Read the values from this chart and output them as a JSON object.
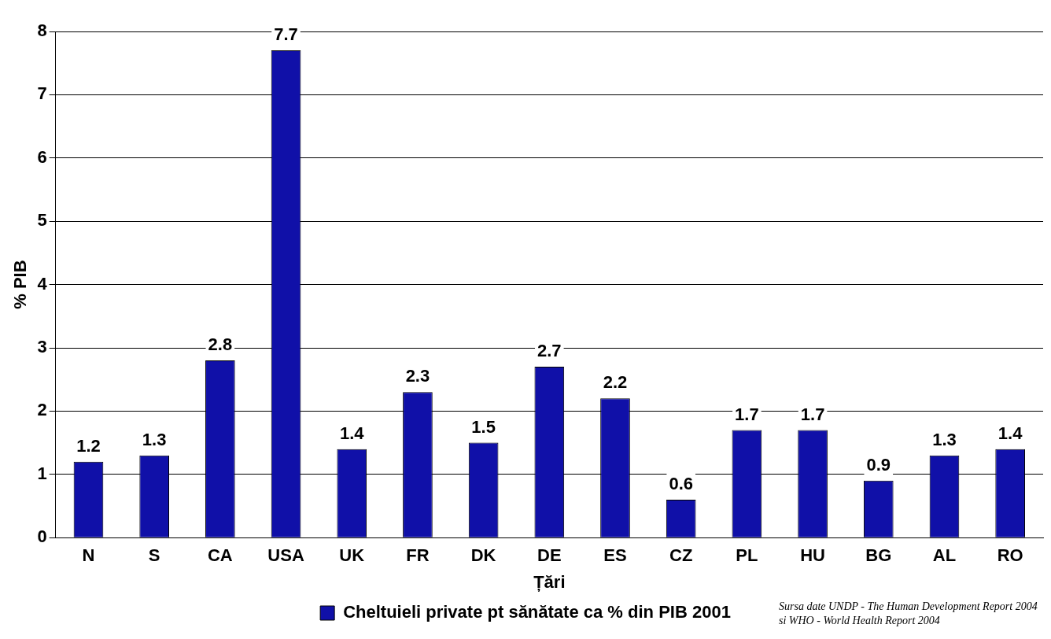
{
  "chart_data": {
    "type": "bar",
    "xlabel": "Țări",
    "ylabel": "% PIB",
    "categories": [
      "N",
      "S",
      "CA",
      "USA",
      "UK",
      "FR",
      "DK",
      "DE",
      "ES",
      "CZ",
      "PL",
      "HU",
      "BG",
      "AL",
      "RO"
    ],
    "series": [
      {
        "name": "Cheltuieli private pt sănătate ca % din PIB 2001",
        "color": "#1010a8",
        "values": [
          1.2,
          1.3,
          2.8,
          7.7,
          1.4,
          2.3,
          1.5,
          2.7,
          2.2,
          0.6,
          1.7,
          1.7,
          0.9,
          1.3,
          1.4
        ]
      }
    ],
    "ylim": [
      0,
      8
    ],
    "yticks": [
      0,
      1,
      2,
      3,
      4,
      5,
      6,
      7,
      8
    ],
    "grid": "y",
    "legend": "bottom",
    "data_labels": true,
    "annotations": [
      "Sursa date UNDP - The Human Development Report 2004 si WHO - World Health Report 2004"
    ]
  }
}
